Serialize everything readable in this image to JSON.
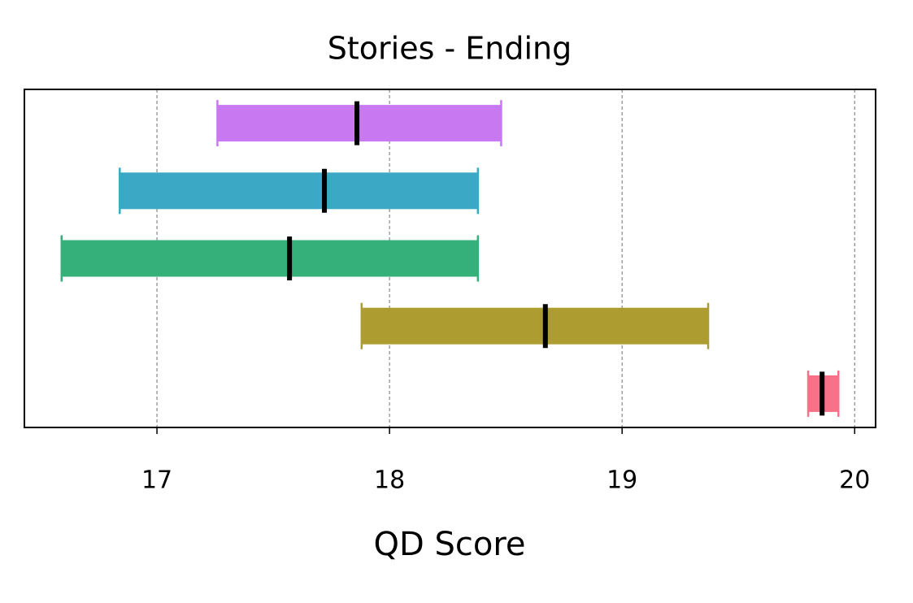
{
  "chart_data": {
    "type": "interval",
    "title": "Stories - Ending",
    "xlabel": "QD Score",
    "categories": [
      null,
      null,
      null,
      null,
      null
    ],
    "low": [
      17.26,
      16.84,
      16.59,
      17.88,
      19.8
    ],
    "high": [
      18.48,
      18.38,
      18.38,
      19.37,
      19.93
    ],
    "median": [
      17.86,
      17.72,
      17.57,
      18.67,
      19.86
    ],
    "colors": [
      "#c879f2",
      "#3ba9c5",
      "#35b07a",
      "#ad9d30",
      "#f77189"
    ],
    "xlim": [
      16.43,
      20.09
    ],
    "xticks": [
      17,
      18,
      19,
      20
    ],
    "grid": true
  }
}
